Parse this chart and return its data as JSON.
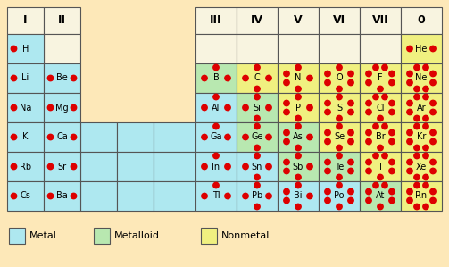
{
  "bg_color": "#fde8b8",
  "metal_color": "#aee8f0",
  "metalloid_color": "#b8e8b0",
  "nonmetal_color": "#f0f080",
  "white_color": "#f8f4e0",
  "border_color": "#555555",
  "dot_color": "#dd0000",
  "text_color": "#000000",
  "elements": [
    {
      "symbol": "H",
      "row": 1,
      "col": 0,
      "type": "metal",
      "dots": 1
    },
    {
      "symbol": "He",
      "row": 1,
      "col": 10,
      "type": "nonmetal",
      "dots": 2
    },
    {
      "symbol": "Li",
      "row": 2,
      "col": 0,
      "type": "metal",
      "dots": 1
    },
    {
      "symbol": "Be",
      "row": 2,
      "col": 1,
      "type": "metal",
      "dots": 2
    },
    {
      "symbol": "B",
      "row": 2,
      "col": 5,
      "type": "metalloid",
      "dots": 3
    },
    {
      "symbol": "C",
      "row": 2,
      "col": 6,
      "type": "nonmetal",
      "dots": 4
    },
    {
      "symbol": "N",
      "row": 2,
      "col": 7,
      "type": "nonmetal",
      "dots": 5
    },
    {
      "symbol": "O",
      "row": 2,
      "col": 8,
      "type": "nonmetal",
      "dots": 6
    },
    {
      "symbol": "F",
      "row": 2,
      "col": 9,
      "type": "nonmetal",
      "dots": 7
    },
    {
      "symbol": "Ne",
      "row": 2,
      "col": 10,
      "type": "nonmetal",
      "dots": 8
    },
    {
      "symbol": "Na",
      "row": 3,
      "col": 0,
      "type": "metal",
      "dots": 1
    },
    {
      "symbol": "Mg",
      "row": 3,
      "col": 1,
      "type": "metal",
      "dots": 2
    },
    {
      "symbol": "Al",
      "row": 3,
      "col": 5,
      "type": "metal",
      "dots": 3
    },
    {
      "symbol": "Si",
      "row": 3,
      "col": 6,
      "type": "metalloid",
      "dots": 4
    },
    {
      "symbol": "P",
      "row": 3,
      "col": 7,
      "type": "nonmetal",
      "dots": 5
    },
    {
      "symbol": "S",
      "row": 3,
      "col": 8,
      "type": "nonmetal",
      "dots": 6
    },
    {
      "symbol": "Cl",
      "row": 3,
      "col": 9,
      "type": "nonmetal",
      "dots": 7
    },
    {
      "symbol": "Ar",
      "row": 3,
      "col": 10,
      "type": "nonmetal",
      "dots": 8
    },
    {
      "symbol": "K",
      "row": 4,
      "col": 0,
      "type": "metal",
      "dots": 1
    },
    {
      "symbol": "Ca",
      "row": 4,
      "col": 1,
      "type": "metal",
      "dots": 2
    },
    {
      "symbol": "Ga",
      "row": 4,
      "col": 5,
      "type": "metal",
      "dots": 3
    },
    {
      "symbol": "Ge",
      "row": 4,
      "col": 6,
      "type": "metalloid",
      "dots": 4
    },
    {
      "symbol": "As",
      "row": 4,
      "col": 7,
      "type": "metalloid",
      "dots": 5
    },
    {
      "symbol": "Se",
      "row": 4,
      "col": 8,
      "type": "nonmetal",
      "dots": 6
    },
    {
      "symbol": "Br",
      "row": 4,
      "col": 9,
      "type": "nonmetal",
      "dots": 7
    },
    {
      "symbol": "Kr",
      "row": 4,
      "col": 10,
      "type": "nonmetal",
      "dots": 8
    },
    {
      "symbol": "Rb",
      "row": 5,
      "col": 0,
      "type": "metal",
      "dots": 1
    },
    {
      "symbol": "Sr",
      "row": 5,
      "col": 1,
      "type": "metal",
      "dots": 2
    },
    {
      "symbol": "In",
      "row": 5,
      "col": 5,
      "type": "metal",
      "dots": 3
    },
    {
      "symbol": "Sn",
      "row": 5,
      "col": 6,
      "type": "metal",
      "dots": 4
    },
    {
      "symbol": "Sb",
      "row": 5,
      "col": 7,
      "type": "metalloid",
      "dots": 5
    },
    {
      "symbol": "Te",
      "row": 5,
      "col": 8,
      "type": "metalloid",
      "dots": 6
    },
    {
      "symbol": "I",
      "row": 5,
      "col": 9,
      "type": "nonmetal",
      "dots": 7
    },
    {
      "symbol": "Xe",
      "row": 5,
      "col": 10,
      "type": "nonmetal",
      "dots": 8
    },
    {
      "symbol": "Cs",
      "row": 6,
      "col": 0,
      "type": "metal",
      "dots": 1
    },
    {
      "symbol": "Ba",
      "row": 6,
      "col": 1,
      "type": "metal",
      "dots": 2
    },
    {
      "symbol": "Tl",
      "row": 6,
      "col": 5,
      "type": "metal",
      "dots": 3
    },
    {
      "symbol": "Pb",
      "row": 6,
      "col": 6,
      "type": "metal",
      "dots": 4
    },
    {
      "symbol": "Bi",
      "row": 6,
      "col": 7,
      "type": "metal",
      "dots": 5
    },
    {
      "symbol": "Po",
      "row": 6,
      "col": 8,
      "type": "metal",
      "dots": 6
    },
    {
      "symbol": "At",
      "row": 6,
      "col": 9,
      "type": "metalloid",
      "dots": 7
    },
    {
      "symbol": "Rn",
      "row": 6,
      "col": 10,
      "type": "nonmetal",
      "dots": 8
    }
  ],
  "headers": [
    {
      "label": "I",
      "col": 0
    },
    {
      "label": "II",
      "col": 1
    },
    {
      "label": "III",
      "col": 5
    },
    {
      "label": "IV",
      "col": 6
    },
    {
      "label": "V",
      "col": 7
    },
    {
      "label": "VI",
      "col": 8
    },
    {
      "label": "VII",
      "col": 9
    },
    {
      "label": "0",
      "col": 10
    }
  ],
  "legend": [
    {
      "label": "Metal",
      "color": "#aee8f0"
    },
    {
      "label": "Metalloid",
      "color": "#b8e8b0"
    },
    {
      "label": "Nonmetal",
      "color": "#f0f080"
    }
  ],
  "col_map": {
    "0": 0,
    "1": 1,
    "5": 3,
    "6": 4,
    "7": 5,
    "8": 6,
    "9": 7,
    "10": 8
  },
  "n_cols": 9,
  "n_rows": 7
}
